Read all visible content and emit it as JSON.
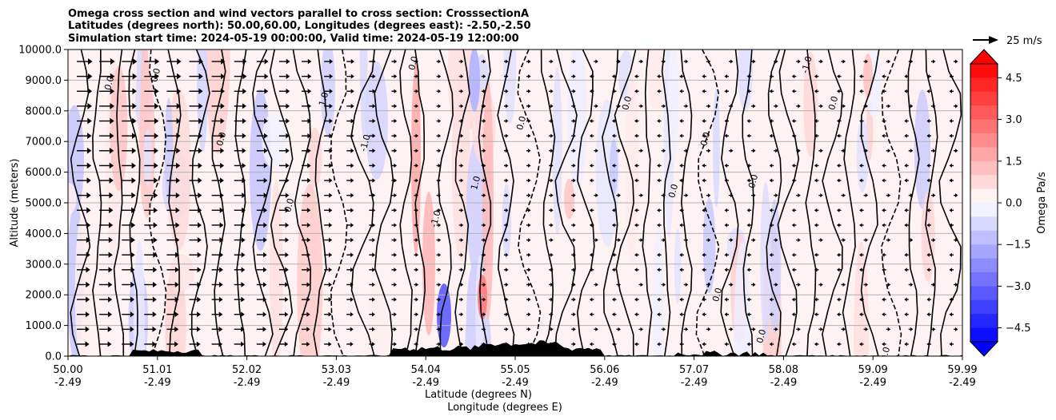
{
  "chart_data": {
    "type": "heatmap",
    "title_lines": [
      "Omega cross section and wind vectors parallel to cross section: CrosssectionA",
      "Latitudes (degrees north): 50.00,60.00, Longitudes (degrees east): -2.50,-2.50",
      "Simulation start time: 2024-05-19 00:00:00, Valid time: 2024-05-19 12:00:00"
    ],
    "ylabel": "Altitude (meters)",
    "xlabel_lines": [
      "Latitude (degrees N)",
      "Longitude (degrees E)"
    ],
    "ylim": [
      0,
      10000
    ],
    "yticks": [
      "0.0",
      "1000.0",
      "2000.0",
      "3000.0",
      "4000.0",
      "5000.0",
      "6000.0",
      "7000.0",
      "8000.0",
      "9000.0",
      "10000.0"
    ],
    "xticks_lat": [
      "50.00",
      "51.01",
      "52.02",
      "53.03",
      "54.04",
      "55.05",
      "56.06",
      "57.07",
      "58.08",
      "59.09",
      "59.99"
    ],
    "xticks_lon": [
      "-2.49",
      "-2.49",
      "-2.49",
      "-2.49",
      "-2.49",
      "-2.49",
      "-2.49",
      "-2.49",
      "-2.49",
      "-2.49",
      "-2.49"
    ],
    "grid": "horizontal",
    "colorbar": {
      "label": "Omega Pa/s",
      "range": [
        -5,
        5
      ],
      "ticks": [
        "4.5",
        "3.0",
        "1.5",
        "0.0",
        "−1.5",
        "−3.0",
        "−4.5"
      ],
      "extend": "both",
      "colormap": "bwr",
      "color_low": "#0000ff",
      "color_mid": "#ffffff",
      "color_high": "#ff0000"
    },
    "quiver_key": {
      "label": "25 m/s"
    },
    "contour_labels": [
      "0.0",
      "-1.0",
      "1.0"
    ],
    "terrain_color": "#000000"
  }
}
